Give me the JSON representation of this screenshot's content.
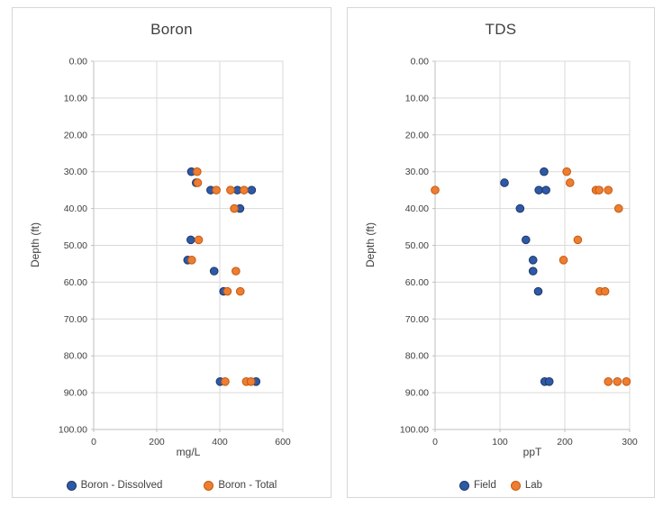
{
  "chart_data": [
    {
      "type": "scatter",
      "title": "Boron",
      "xlabel": "mg/L",
      "ylabel": "Depth (ft)",
      "x_axis": {
        "min": 0,
        "max": 600,
        "step": 200,
        "decimals": 0
      },
      "y_axis": {
        "min": 0,
        "max": 100,
        "step": 10,
        "decimals": 2,
        "inverted": true
      },
      "grid": "on",
      "legend_position": "bottom",
      "series": [
        {
          "name": "Boron - Dissolved",
          "color": "#2E59A8",
          "border": "#1F3864",
          "points": [
            [
              310,
              30
            ],
            [
              325,
              33
            ],
            [
              371,
              35
            ],
            [
              456,
              35
            ],
            [
              501,
              35
            ],
            [
              464,
              40
            ],
            [
              308,
              48.5
            ],
            [
              298,
              54
            ],
            [
              382,
              57
            ],
            [
              412,
              62.5
            ],
            [
              401,
              87
            ],
            [
              515,
              87
            ]
          ]
        },
        {
          "name": "Boron - Total",
          "color": "#ED7D31",
          "border": "#C55A11",
          "points": [
            [
              328,
              30
            ],
            [
              330,
              33
            ],
            [
              389,
              35
            ],
            [
              434,
              35
            ],
            [
              477,
              35
            ],
            [
              446,
              40
            ],
            [
              333,
              48.5
            ],
            [
              311,
              54
            ],
            [
              451,
              57
            ],
            [
              424,
              62.5
            ],
            [
              465,
              62.5
            ],
            [
              417,
              87
            ],
            [
              484,
              87
            ],
            [
              499,
              87
            ]
          ]
        }
      ]
    },
    {
      "type": "scatter",
      "title": "TDS",
      "xlabel": "ppT",
      "ylabel": "Depth (ft)",
      "x_axis": {
        "min": 0,
        "max": 300,
        "step": 100,
        "decimals": 0
      },
      "y_axis": {
        "min": 0,
        "max": 100,
        "step": 10,
        "decimals": 2,
        "inverted": true
      },
      "grid": "on",
      "legend_position": "bottom",
      "series": [
        {
          "name": "Field",
          "color": "#2E59A8",
          "border": "#1F3864",
          "points": [
            [
              107,
              33
            ],
            [
              168,
              30
            ],
            [
              160,
              35
            ],
            [
              171,
              35
            ],
            [
              131,
              40
            ],
            [
              140,
              48.5
            ],
            [
              151,
              54
            ],
            [
              151,
              57
            ],
            [
              159,
              62.5
            ],
            [
              169,
              87
            ],
            [
              176,
              87
            ]
          ]
        },
        {
          "name": "Lab",
          "color": "#ED7D31",
          "border": "#C55A11",
          "points": [
            [
              0,
              35
            ],
            [
              203,
              30
            ],
            [
              208,
              33
            ],
            [
              248,
              35
            ],
            [
              253,
              35
            ],
            [
              267,
              35
            ],
            [
              283,
              40
            ],
            [
              220,
              48.5
            ],
            [
              198,
              54
            ],
            [
              254,
              62.5
            ],
            [
              262,
              62.5
            ],
            [
              267,
              87
            ],
            [
              281,
              87
            ],
            [
              295,
              87
            ]
          ]
        }
      ]
    }
  ],
  "colors": {
    "gridline": "#d9d9d9",
    "axis_line": "#bfbfbf",
    "text": "#404040"
  }
}
